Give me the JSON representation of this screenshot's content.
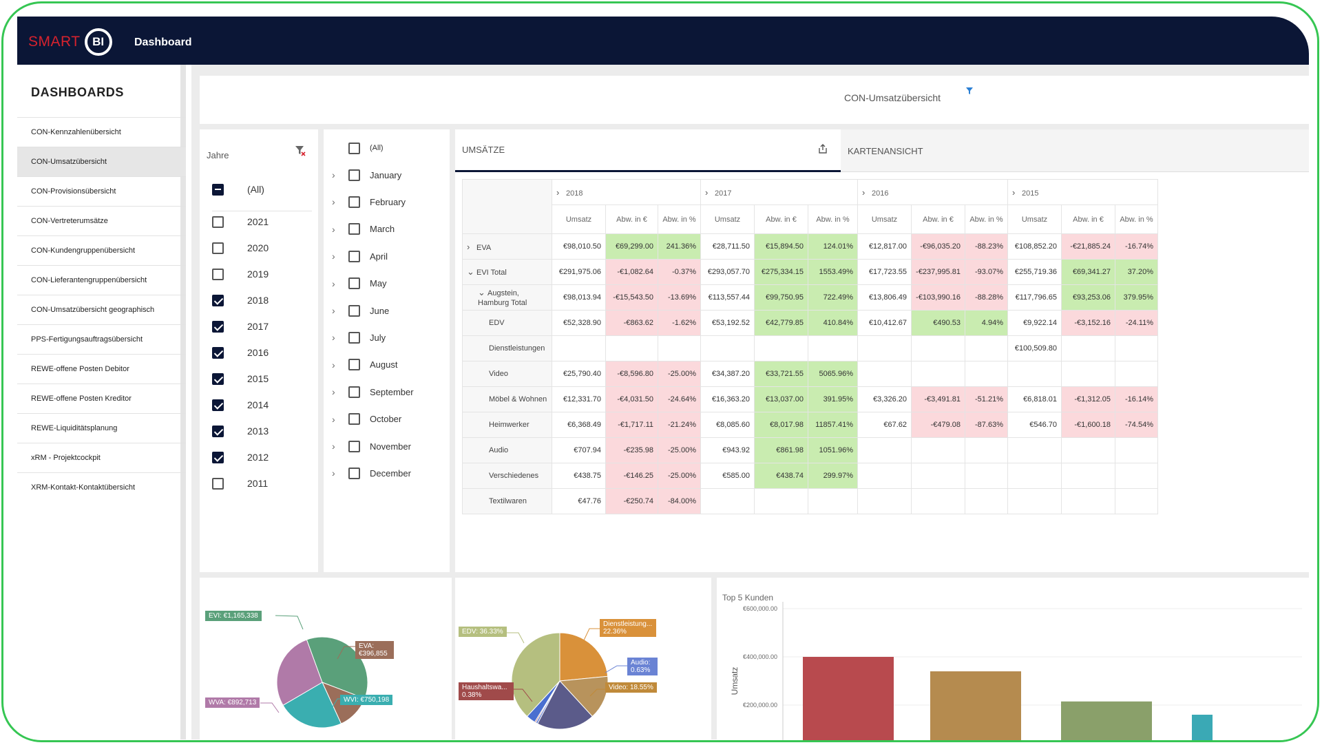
{
  "app": {
    "logo_text": "SMART",
    "logo_badge": "BI",
    "title": "Dashboard"
  },
  "sidebar": {
    "title": "DASHBOARDS",
    "items": [
      "CON-Kennzahlenübersicht",
      "CON-Umsatzübersicht",
      "CON-Provisionsübersicht",
      "CON-Vertreterumsätze",
      "CON-Kundengruppenübersicht",
      "CON-Lieferantengruppenübersicht",
      "CON-Umsatzübersicht geographisch",
      "PPS-Fertigungsauftragsübersicht",
      "REWE-offene Posten Debitor",
      "REWE-offene Posten Kreditor",
      "REWE-Liquiditätsplanung",
      "xRM - Projektcockpit",
      "XRM-Kontakt-Kontaktübersicht"
    ],
    "active_index": 1
  },
  "report": {
    "title": "CON-Umsatzübersicht"
  },
  "years_filter": {
    "header": "Jahre",
    "all_label": "(All)",
    "items": [
      {
        "label": "2021",
        "checked": false
      },
      {
        "label": "2020",
        "checked": false
      },
      {
        "label": "2019",
        "checked": false
      },
      {
        "label": "2018",
        "checked": true
      },
      {
        "label": "2017",
        "checked": true
      },
      {
        "label": "2016",
        "checked": true
      },
      {
        "label": "2015",
        "checked": true
      },
      {
        "label": "2014",
        "checked": true
      },
      {
        "label": "2013",
        "checked": true
      },
      {
        "label": "2012",
        "checked": true
      },
      {
        "label": "2011",
        "checked": false
      }
    ]
  },
  "months_filter": {
    "all_label": "(All)",
    "items": [
      "January",
      "February",
      "March",
      "April",
      "May",
      "June",
      "July",
      "August",
      "September",
      "October",
      "November",
      "December"
    ]
  },
  "tabs": {
    "umsaetze": "UMSÄTZE",
    "karten": "KARTENANSICHT"
  },
  "pivot": {
    "years": [
      "2018",
      "2017",
      "2016",
      "2015"
    ],
    "measures": [
      "Umsatz",
      "Abw. in €",
      "Abw. in %"
    ],
    "rows": [
      {
        "label": "EVA",
        "level": 0,
        "chev": ">",
        "cells": [
          "€98,010.50",
          "€69,299.00",
          "241.36%",
          "€28,711.50",
          "€15,894.50",
          "124.01%",
          "€12,817.00",
          "-€96,035.20",
          "-88.23%",
          "€108,852.20",
          "-€21,885.24",
          "-16.74%"
        ],
        "cls": [
          "",
          "pos",
          "pos",
          "",
          "pos",
          "pos",
          "",
          "neg",
          "neg",
          "",
          "neg",
          "neg"
        ]
      },
      {
        "label": "EVI Total",
        "level": 0,
        "chev": "v",
        "cells": [
          "€291,975.06",
          "-€1,082.64",
          "-0.37%",
          "€293,057.70",
          "€275,334.15",
          "1553.49%",
          "€17,723.55",
          "-€237,995.81",
          "-93.07%",
          "€255,719.36",
          "€69,341.27",
          "37.20%"
        ],
        "cls": [
          "",
          "neg",
          "neg",
          "",
          "pos",
          "pos",
          "",
          "neg",
          "neg",
          "",
          "pos",
          "pos"
        ]
      },
      {
        "label": "Augstein, Hamburg Total",
        "level": 1,
        "chev": "v",
        "cells": [
          "€98,013.94",
          "-€15,543.50",
          "-13.69%",
          "€113,557.44",
          "€99,750.95",
          "722.49%",
          "€13,806.49",
          "-€103,990.16",
          "-88.28%",
          "€117,796.65",
          "€93,253.06",
          "379.95%"
        ],
        "cls": [
          "",
          "neg",
          "neg",
          "",
          "pos",
          "pos",
          "",
          "neg",
          "neg",
          "",
          "pos",
          "pos"
        ]
      },
      {
        "label": "EDV",
        "level": 2,
        "chev": "",
        "cells": [
          "€52,328.90",
          "-€863.62",
          "-1.62%",
          "€53,192.52",
          "€42,779.85",
          "410.84%",
          "€10,412.67",
          "€490.53",
          "4.94%",
          "€9,922.14",
          "-€3,152.16",
          "-24.11%"
        ],
        "cls": [
          "",
          "neg",
          "neg",
          "",
          "pos",
          "pos",
          "",
          "pos",
          "pos",
          "",
          "neg",
          "neg"
        ]
      },
      {
        "label": "Dienstleistungen",
        "level": 2,
        "chev": "",
        "cells": [
          "",
          "",
          "",
          "",
          "",
          "",
          "",
          "",
          "",
          "€100,509.80",
          "",
          ""
        ],
        "cls": [
          "",
          "",
          "",
          "",
          "",
          "",
          "",
          "",
          "",
          "",
          "",
          ""
        ]
      },
      {
        "label": "Video",
        "level": 2,
        "chev": "",
        "cells": [
          "€25,790.40",
          "-€8,596.80",
          "-25.00%",
          "€34,387.20",
          "€33,721.55",
          "5065.96%",
          "",
          "",
          "",
          "",
          "",
          ""
        ],
        "cls": [
          "",
          "neg",
          "neg",
          "",
          "pos",
          "pos",
          "",
          "",
          "",
          "",
          "",
          ""
        ]
      },
      {
        "label": "Möbel & Wohnen",
        "level": 2,
        "chev": "",
        "cells": [
          "€12,331.70",
          "-€4,031.50",
          "-24.64%",
          "€16,363.20",
          "€13,037.00",
          "391.95%",
          "€3,326.20",
          "-€3,491.81",
          "-51.21%",
          "€6,818.01",
          "-€1,312.05",
          "-16.14%"
        ],
        "cls": [
          "",
          "neg",
          "neg",
          "",
          "pos",
          "pos",
          "",
          "neg",
          "neg",
          "",
          "neg",
          "neg"
        ]
      },
      {
        "label": "Heimwerker",
        "level": 2,
        "chev": "",
        "cells": [
          "€6,368.49",
          "-€1,717.11",
          "-21.24%",
          "€8,085.60",
          "€8,017.98",
          "11857.41%",
          "€67.62",
          "-€479.08",
          "-87.63%",
          "€546.70",
          "-€1,600.18",
          "-74.54%"
        ],
        "cls": [
          "",
          "neg",
          "neg",
          "",
          "pos",
          "pos",
          "",
          "neg",
          "neg",
          "",
          "neg",
          "neg"
        ]
      },
      {
        "label": "Audio",
        "level": 2,
        "chev": "",
        "cells": [
          "€707.94",
          "-€235.98",
          "-25.00%",
          "€943.92",
          "€861.98",
          "1051.96%",
          "",
          "",
          "",
          "",
          "",
          ""
        ],
        "cls": [
          "",
          "neg",
          "neg",
          "",
          "pos",
          "pos",
          "",
          "",
          "",
          "",
          "",
          ""
        ]
      },
      {
        "label": "Verschiedenes",
        "level": 2,
        "chev": "",
        "cells": [
          "€438.75",
          "-€146.25",
          "-25.00%",
          "€585.00",
          "€438.74",
          "299.97%",
          "",
          "",
          "",
          "",
          "",
          ""
        ],
        "cls": [
          "",
          "neg",
          "neg",
          "",
          "pos",
          "pos",
          "",
          "",
          "",
          "",
          "",
          ""
        ]
      },
      {
        "label": "Textilwaren",
        "level": 2,
        "chev": "",
        "cells": [
          "€47.76",
          "-€250.74",
          "-84.00%",
          "",
          "",
          "",
          "",
          "",
          "",
          "",
          "",
          ""
        ],
        "cls": [
          "",
          "neg",
          "neg",
          "",
          "",
          "",
          "",
          "",
          "",
          "",
          "",
          ""
        ]
      }
    ]
  },
  "pie1": {
    "labels": [
      "EVI: €1,165,338",
      "EVA: €396,855",
      "WVI: €750,198",
      "WVA: €892,713"
    ],
    "slices": [
      {
        "value": 1165338,
        "color": "#5aa07a"
      },
      {
        "value": 396855,
        "color": "#9b6e5a"
      },
      {
        "value": 750198,
        "color": "#3aaeb0"
      },
      {
        "value": 892713,
        "color": "#b07aa8"
      }
    ]
  },
  "pie2": {
    "labels": [
      "EDV: 36.33%",
      "Dienstleistung... 22.36%",
      "Audio: 0.63%",
      "Video: 18.55%",
      "Haushaltswa... 0.38%"
    ],
    "slices": [
      {
        "value": 22.36,
        "color": "#d9913a"
      },
      {
        "value": 14.0,
        "color": "#b8935c"
      },
      {
        "value": 18.55,
        "color": "#5b5b8a"
      },
      {
        "value": 0.63,
        "color": "#6a83d4"
      },
      {
        "value": 0.38,
        "color": "#a04a4a"
      },
      {
        "value": 3.0,
        "color": "#4a6fd0"
      },
      {
        "value": 36.33,
        "color": "#b5bf7f"
      }
    ]
  },
  "bars": {
    "title": "Top 5 Kunden",
    "ylabel": "Umsatz",
    "ticks": [
      "€600,000.00",
      "€400,000.00",
      "€200,000.00"
    ],
    "colors": [
      "#b84a4e",
      "#b58b4f",
      "#8aa06a",
      "#3aa9b5"
    ],
    "values": [
      400000,
      340000,
      215000,
      160000
    ],
    "ymax": 600000
  }
}
